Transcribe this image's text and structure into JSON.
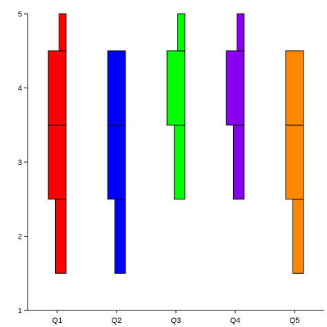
{
  "chart_data": {
    "type": "box",
    "categories": [
      "Q1",
      "Q2",
      "Q3",
      "Q4",
      "Q5"
    ],
    "ylim": [
      1,
      5
    ],
    "yticks": [
      "1",
      "2",
      "3",
      "4",
      "5"
    ],
    "title": "",
    "xlabel": "",
    "ylabel": "",
    "grid": false,
    "series": [
      {
        "category": "Q1",
        "color": "#ff0000",
        "segments": [
          [
            1.5,
            2.5
          ],
          [
            2.5,
            3.5
          ],
          [
            3.5,
            4.5
          ],
          [
            4.5,
            5.0
          ]
        ]
      },
      {
        "category": "Q2",
        "color": "#0000ff",
        "segments": [
          [
            1.5,
            2.5
          ],
          [
            2.5,
            3.5
          ],
          [
            3.5,
            4.5
          ]
        ]
      },
      {
        "category": "Q3",
        "color": "#00ff00",
        "segments": [
          [
            2.5,
            3.5
          ],
          [
            3.5,
            4.5
          ],
          [
            4.5,
            5.0
          ]
        ]
      },
      {
        "category": "Q4",
        "color": "#8800ee",
        "segments": [
          [
            2.5,
            3.5
          ],
          [
            3.5,
            4.5
          ],
          [
            4.5,
            5.0
          ]
        ]
      },
      {
        "category": "Q5",
        "color": "#ff8800",
        "segments": [
          [
            1.5,
            2.5
          ],
          [
            2.5,
            3.5
          ],
          [
            3.5,
            4.5
          ]
        ]
      }
    ]
  }
}
